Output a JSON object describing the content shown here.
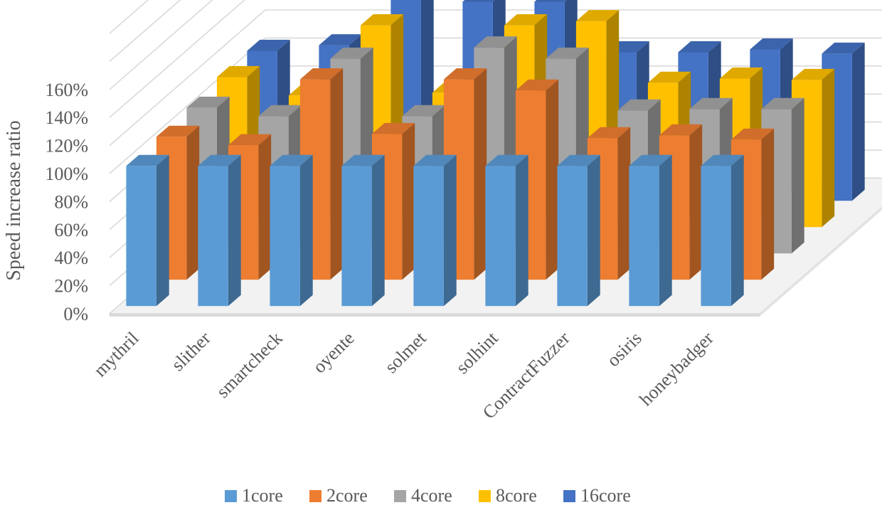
{
  "chart_data": {
    "type": "bar",
    "variant": "3d-clustered-depth",
    "title": "",
    "xlabel": "",
    "ylabel": "Speed increase ratio",
    "ylim": [
      0,
      160
    ],
    "y_unit": "%",
    "yticks": [
      "0%",
      "20%",
      "40%",
      "60%",
      "80%",
      "100%",
      "120%",
      "140%",
      "160%"
    ],
    "grid": true,
    "legend_position": "bottom",
    "categories": [
      "mythril",
      "slither",
      "smartcheck",
      "oyente",
      "solmet",
      "solhint",
      "ContractFuzzer",
      "osiris",
      "honeybadger"
    ],
    "series": [
      {
        "name": "1core",
        "color": "#5B9BD5",
        "values": [
          100,
          100,
          100,
          100,
          100,
          100,
          100,
          100,
          100
        ]
      },
      {
        "name": "2core",
        "color": "#ED7D31",
        "values": [
          102,
          96,
          143,
          104,
          143,
          135,
          101,
          103,
          100
        ]
      },
      {
        "name": "4core",
        "color": "#A5A5A5",
        "values": [
          104,
          98,
          139,
          98,
          147,
          139,
          102,
          103,
          103
        ]
      },
      {
        "name": "8core",
        "color": "#FFC000",
        "values": [
          107,
          94,
          144,
          96,
          144,
          147,
          103,
          106,
          105
        ]
      },
      {
        "name": "16core",
        "color": "#4472C4",
        "values": [
          107,
          111,
          144,
          142,
          142,
          106,
          106,
          108,
          105
        ]
      }
    ]
  }
}
